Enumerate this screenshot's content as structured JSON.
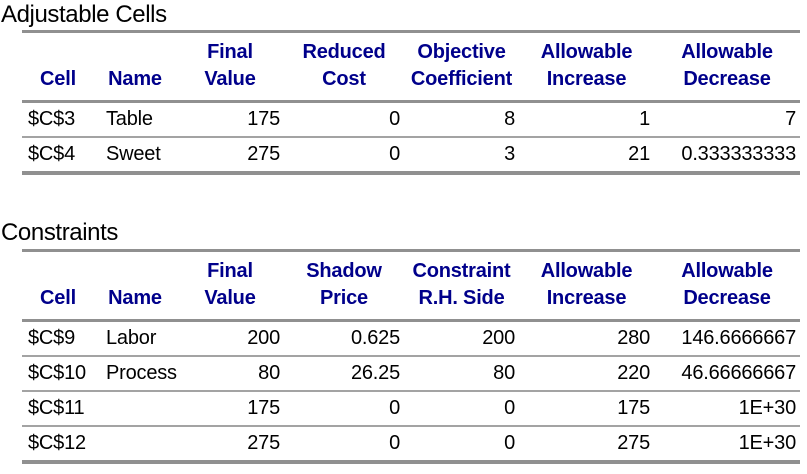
{
  "colors": {
    "header_text": "#00008B",
    "rule_line": "#909090",
    "body_text": "#000000",
    "background": "#FFFFFF"
  },
  "adjustable": {
    "title": "Adjustable Cells",
    "headers": {
      "line1": [
        "",
        "",
        "Final",
        "Reduced",
        "Objective",
        "Allowable",
        "Allowable"
      ],
      "line2": [
        "Cell",
        "Name",
        "Value",
        "Cost",
        "Coefficient",
        "Increase",
        "Decrease"
      ]
    },
    "rows": [
      {
        "cell": "$C$3",
        "name": "Table",
        "final_value": "175",
        "reduced_cost": "0",
        "objective_coefficient": "8",
        "allowable_increase": "1",
        "allowable_decrease": "7"
      },
      {
        "cell": "$C$4",
        "name": "Sweet",
        "final_value": "275",
        "reduced_cost": "0",
        "objective_coefficient": "3",
        "allowable_increase": "21",
        "allowable_decrease": "0.333333333"
      }
    ]
  },
  "constraints": {
    "title": "Constraints",
    "headers": {
      "line1": [
        "",
        "",
        "Final",
        "Shadow",
        "Constraint",
        "Allowable",
        "Allowable"
      ],
      "line2": [
        "Cell",
        "Name",
        "Value",
        "Price",
        "R.H. Side",
        "Increase",
        "Decrease"
      ]
    },
    "rows": [
      {
        "cell": "$C$9",
        "name": "Labor",
        "final_value": "200",
        "shadow_price": "0.625",
        "constraint_rhs": "200",
        "allowable_increase": "280",
        "allowable_decrease": "146.6666667"
      },
      {
        "cell": "$C$10",
        "name": "Process",
        "final_value": "80",
        "shadow_price": "26.25",
        "constraint_rhs": "80",
        "allowable_increase": "220",
        "allowable_decrease": "46.66666667"
      },
      {
        "cell": "$C$11",
        "name": "",
        "final_value": "175",
        "shadow_price": "0",
        "constraint_rhs": "0",
        "allowable_increase": "175",
        "allowable_decrease": "1E+30"
      },
      {
        "cell": "$C$12",
        "name": "",
        "final_value": "275",
        "shadow_price": "0",
        "constraint_rhs": "0",
        "allowable_increase": "275",
        "allowable_decrease": "1E+30"
      }
    ]
  }
}
